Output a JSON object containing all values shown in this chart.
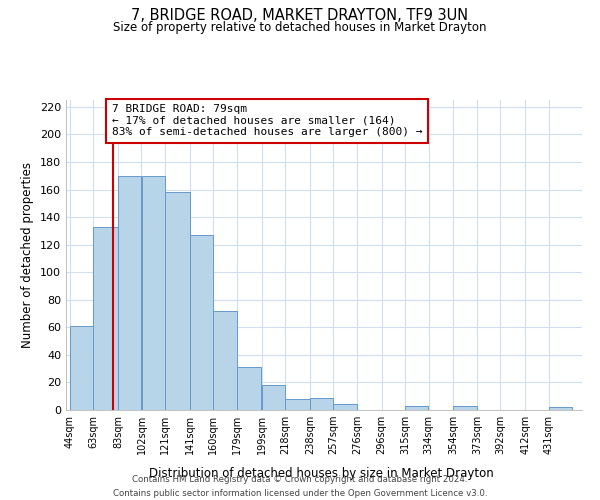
{
  "title": "7, BRIDGE ROAD, MARKET DRAYTON, TF9 3UN",
  "subtitle": "Size of property relative to detached houses in Market Drayton",
  "xlabel": "Distribution of detached houses by size in Market Drayton",
  "ylabel": "Number of detached properties",
  "bar_color": "#b8d4e8",
  "bar_edge_color": "#6699cc",
  "background_color": "#ffffff",
  "grid_color": "#d0dff0",
  "bin_labels": [
    "44sqm",
    "63sqm",
    "83sqm",
    "102sqm",
    "121sqm",
    "141sqm",
    "160sqm",
    "179sqm",
    "199sqm",
    "218sqm",
    "238sqm",
    "257sqm",
    "276sqm",
    "296sqm",
    "315sqm",
    "334sqm",
    "354sqm",
    "373sqm",
    "392sqm",
    "412sqm",
    "431sqm"
  ],
  "bar_heights": [
    61,
    133,
    170,
    170,
    158,
    127,
    72,
    31,
    18,
    8,
    9,
    4,
    0,
    0,
    3,
    0,
    3,
    0,
    0,
    0,
    2
  ],
  "bin_edges": [
    44,
    63,
    83,
    102,
    121,
    141,
    160,
    179,
    199,
    218,
    238,
    257,
    276,
    296,
    315,
    334,
    354,
    373,
    392,
    412,
    431,
    450
  ],
  "vline_x": 79,
  "vline_color": "#cc0000",
  "annotation_text": "7 BRIDGE ROAD: 79sqm\n← 17% of detached houses are smaller (164)\n83% of semi-detached houses are larger (800) →",
  "annotation_box_color": "#ffffff",
  "annotation_box_edge": "#cc0000",
  "ylim": [
    0,
    225
  ],
  "yticks": [
    0,
    20,
    40,
    60,
    80,
    100,
    120,
    140,
    160,
    180,
    200,
    220
  ],
  "footer_line1": "Contains HM Land Registry data © Crown copyright and database right 2024.",
  "footer_line2": "Contains public sector information licensed under the Open Government Licence v3.0."
}
